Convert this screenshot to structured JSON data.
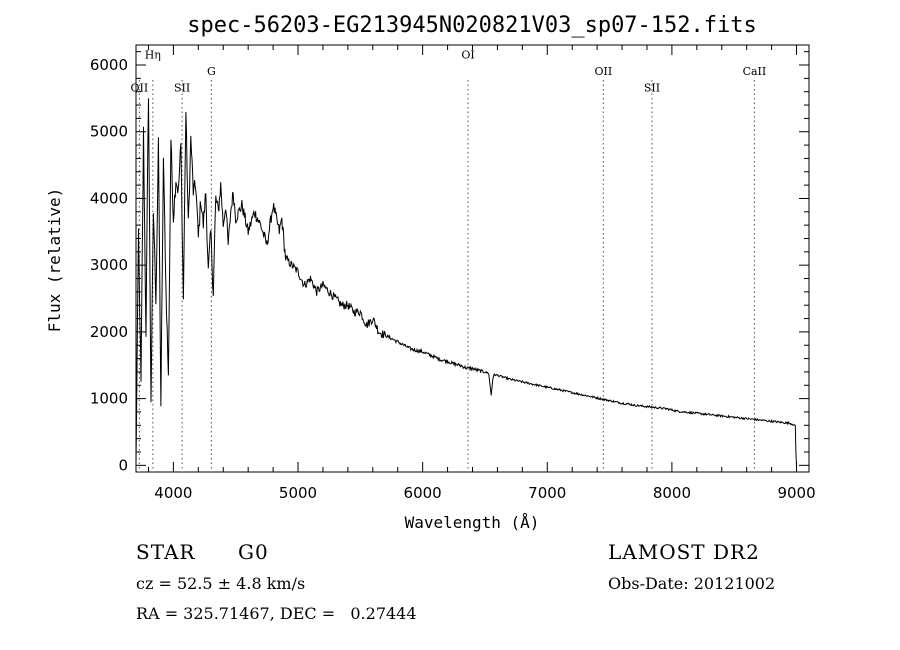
{
  "chart_data": {
    "type": "line",
    "title": "spec-56203-EG213945N020821V03_sp07-152.fits",
    "xlabel": "Wavelength (Å)",
    "ylabel": "Flux (relative)",
    "xlim": [
      3700,
      9100
    ],
    "ylim": [
      -100,
      6300
    ],
    "xticks": [
      4000,
      5000,
      6000,
      7000,
      8000,
      9000
    ],
    "xtick_labels": [
      "4000",
      "5000",
      "6000",
      "7000",
      "8000",
      "9000"
    ],
    "yticks": [
      0,
      1000,
      2000,
      3000,
      4000,
      5000,
      6000
    ],
    "ytick_labels": [
      "0",
      "1000",
      "2000",
      "3000",
      "4000",
      "5000",
      "6000"
    ],
    "grid": false,
    "line_color": "#000000",
    "spectrum": {
      "x": [
        3700,
        3720,
        3740,
        3760,
        3780,
        3800,
        3820,
        3840,
        3860,
        3880,
        3900,
        3920,
        3940,
        3960,
        3980,
        4000,
        4020,
        4040,
        4060,
        4080,
        4100,
        4120,
        4140,
        4160,
        4180,
        4200,
        4220,
        4240,
        4260,
        4280,
        4300,
        4320,
        4340,
        4360,
        4380,
        4400,
        4420,
        4440,
        4460,
        4480,
        4500,
        4550,
        4600,
        4650,
        4700,
        4750,
        4800,
        4850,
        4870,
        4900,
        4950,
        5000,
        5050,
        5100,
        5150,
        5200,
        5250,
        5300,
        5350,
        5400,
        5450,
        5500,
        5550,
        5600,
        5650,
        5700,
        5750,
        5800,
        5850,
        5900,
        5950,
        6000,
        6050,
        6100,
        6150,
        6200,
        6250,
        6300,
        6350,
        6400,
        6450,
        6500,
        6530,
        6550,
        6563,
        6575,
        6600,
        6650,
        6700,
        6750,
        6800,
        6850,
        6900,
        6950,
        7000,
        7050,
        7100,
        7150,
        7200,
        7250,
        7300,
        7350,
        7400,
        7450,
        7500,
        7550,
        7600,
        7650,
        7700,
        7750,
        7800,
        7850,
        7900,
        7950,
        8000,
        8050,
        8100,
        8150,
        8200,
        8250,
        8300,
        8350,
        8400,
        8450,
        8500,
        8550,
        8600,
        8650,
        8700,
        8750,
        8800,
        8850,
        8900,
        8950,
        8990,
        8995,
        9000
      ],
      "y": [
        0,
        3500,
        1200,
        5000,
        2000,
        5600,
        1000,
        3800,
        2500,
        4800,
        900,
        4600,
        2700,
        1300,
        4900,
        3700,
        4300,
        4100,
        4800,
        2500,
        5300,
        3600,
        4900,
        4100,
        4200,
        3400,
        4000,
        3600,
        4100,
        2900,
        3500,
        2600,
        4000,
        3800,
        4200,
        3600,
        3900,
        3300,
        3800,
        4100,
        3700,
        3900,
        3500,
        3800,
        3600,
        3300,
        3900,
        3500,
        3700,
        3100,
        3000,
        2900,
        2700,
        2800,
        2600,
        2700,
        2600,
        2500,
        2400,
        2400,
        2300,
        2300,
        2100,
        2200,
        2000,
        1950,
        1900,
        1850,
        1800,
        1750,
        1720,
        1700,
        1660,
        1620,
        1580,
        1560,
        1520,
        1500,
        1460,
        1450,
        1420,
        1400,
        1380,
        1050,
        1300,
        1360,
        1350,
        1320,
        1290,
        1270,
        1250,
        1230,
        1210,
        1190,
        1170,
        1150,
        1130,
        1110,
        1090,
        1070,
        1050,
        1030,
        1010,
        990,
        970,
        950,
        930,
        920,
        900,
        890,
        880,
        870,
        860,
        850,
        830,
        810,
        800,
        790,
        780,
        770,
        760,
        750,
        740,
        730,
        720,
        710,
        700,
        690,
        680,
        670,
        660,
        650,
        640,
        630,
        600,
        200,
        0
      ]
    },
    "line_annotations": [
      {
        "label": "OII",
        "x": 3727,
        "label_y": 5600
      },
      {
        "label": "Hη",
        "x": 3835,
        "label_y": 6100
      },
      {
        "label": "SII",
        "x": 4070,
        "label_y": 5600
      },
      {
        "label": "G",
        "x": 4305,
        "label_y": 5850
      },
      {
        "label": "OI",
        "x": 6364,
        "label_y": 6100
      },
      {
        "label": "OII",
        "x": 7450,
        "label_y": 5850
      },
      {
        "label": "SII",
        "x": 7840,
        "label_y": 5600
      },
      {
        "label": "CaII",
        "x": 8662,
        "label_y": 5850
      }
    ]
  },
  "info": {
    "object_class": "STAR",
    "subclass": "G0",
    "survey": "LAMOST DR2",
    "redshift_text": "cz = 52.5 ± 4.8 km/s",
    "obs_date_text": "Obs-Date: 20121002",
    "coords_text": "RA = 325.71467, DEC =   0.27444"
  }
}
